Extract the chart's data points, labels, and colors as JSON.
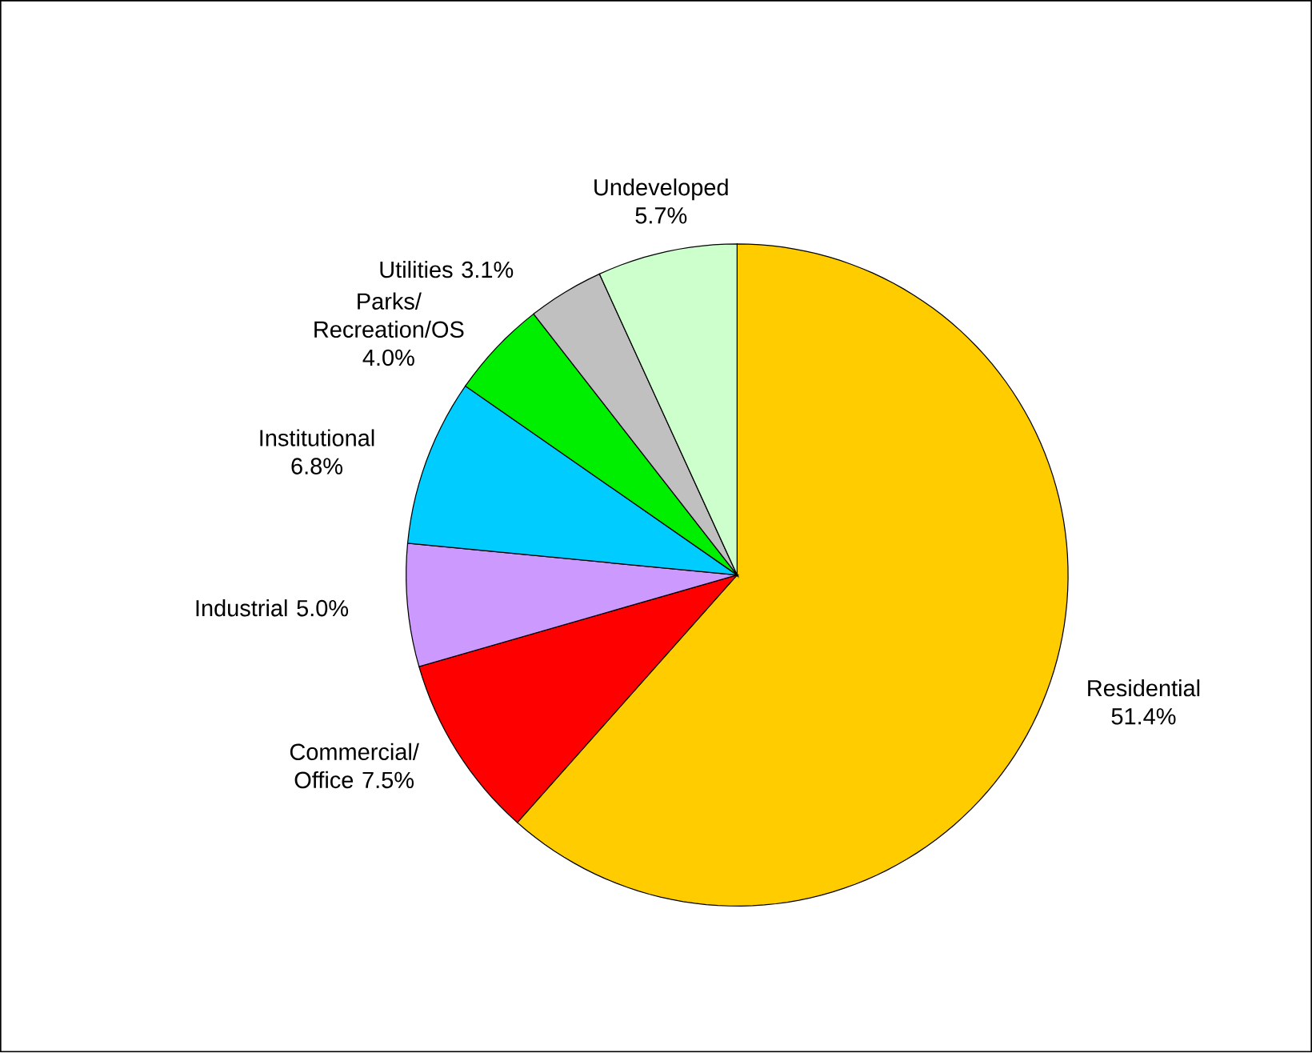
{
  "chart_data": {
    "type": "pie",
    "categories": [
      "Residential",
      "Commercial/ Office",
      "Industrial",
      "Institutional",
      "Parks/ Recreation/OS",
      "Utilities",
      "Undeveloped"
    ],
    "values": [
      51.4,
      7.5,
      5.0,
      6.8,
      4.0,
      3.1,
      5.7
    ],
    "value_labels": [
      "51.4%",
      "7.5%",
      "5.0%",
      "6.8%",
      "4.0%",
      "3.1%",
      "5.7%"
    ],
    "colors": [
      "#ffcc00",
      "#ff0000",
      "#cc99ff",
      "#00ccff",
      "#00ee00",
      "#c0c0c0",
      "#ccffcc"
    ]
  }
}
